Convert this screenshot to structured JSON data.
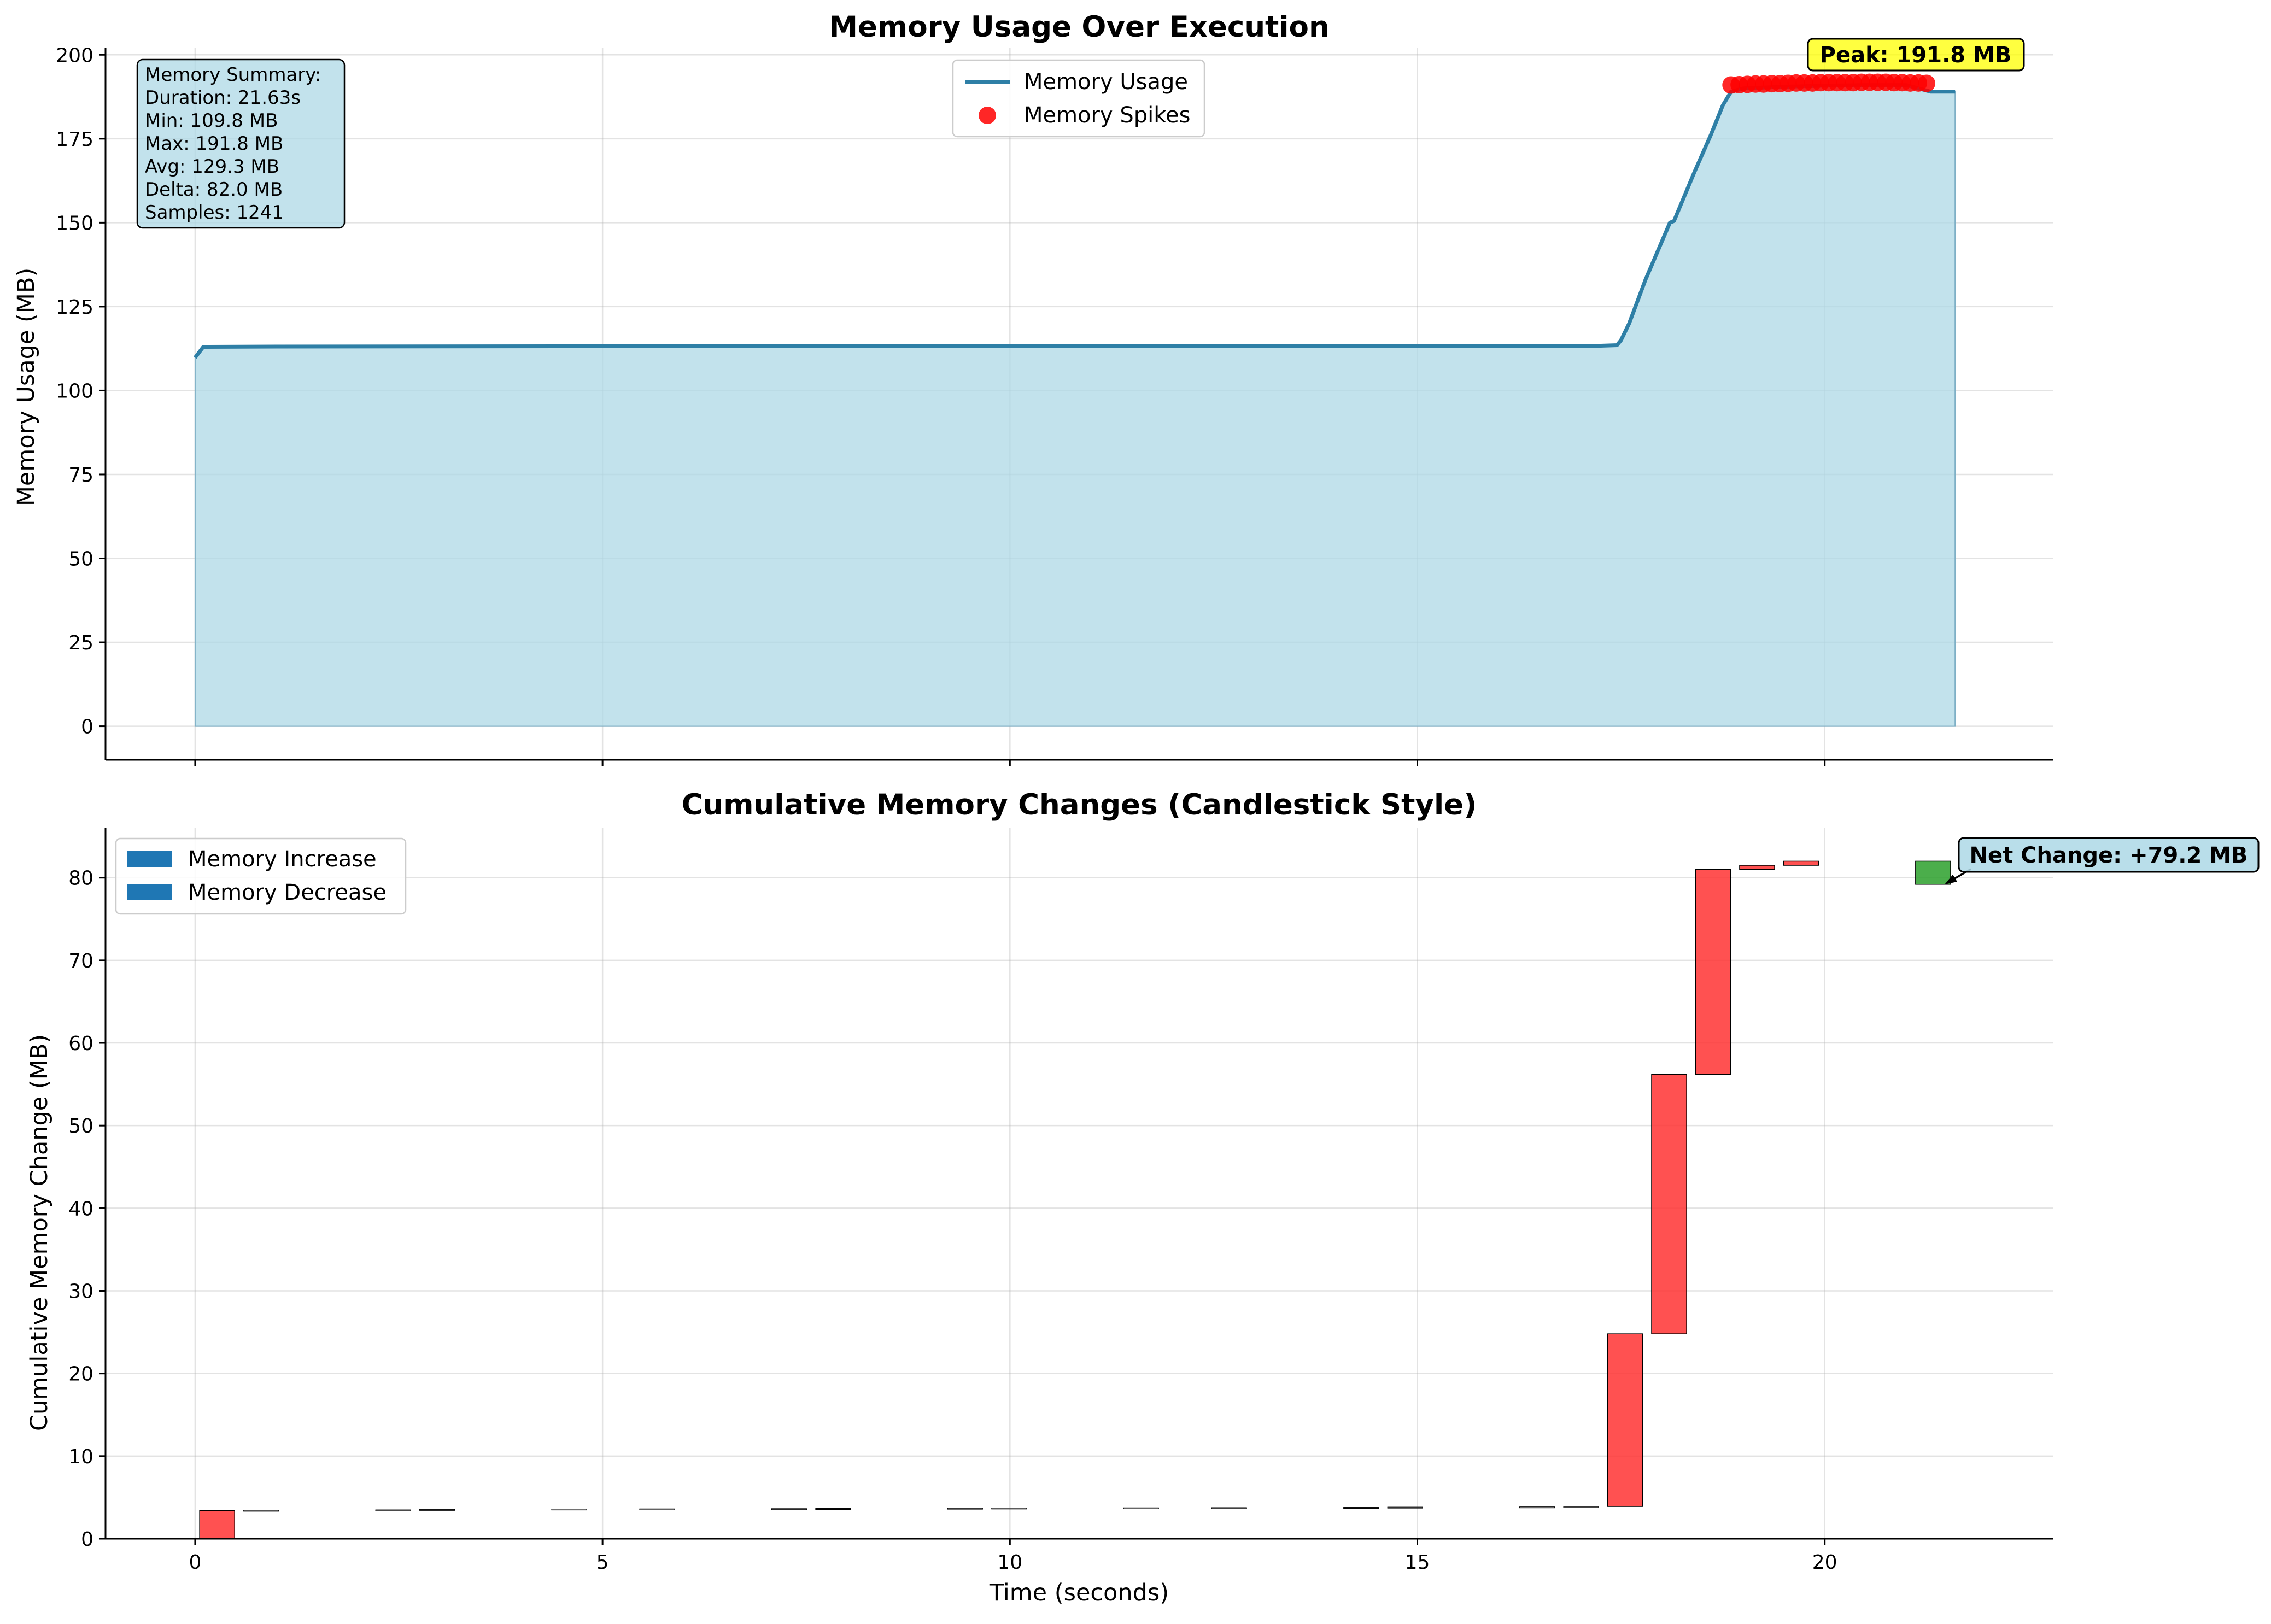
{
  "chart_data": [
    {
      "type": "line",
      "title": "Memory Usage Over Execution",
      "xlabel": "",
      "ylabel": "Memory Usage (MB)",
      "xlim": [
        -1.1,
        22.8
      ],
      "ylim": [
        -10,
        202
      ],
      "xticks": [
        0,
        5,
        10,
        15,
        20
      ],
      "yticks": [
        0,
        25,
        50,
        75,
        100,
        125,
        150,
        175,
        200
      ],
      "grid": true,
      "legend_position": "top-center",
      "colors": {
        "line": "#2e7fa6",
        "fill": "#add8e6",
        "spikes": "#ff0000"
      },
      "series": [
        {
          "name": "Memory Usage",
          "x": [
            0.0,
            0.1,
            1.0,
            5.0,
            10.0,
            15.0,
            17.2,
            17.45,
            17.5,
            17.6,
            17.8,
            18.1,
            18.15,
            18.4,
            18.6,
            18.75,
            18.85,
            19.0,
            19.5,
            20.0,
            20.5,
            21.0,
            21.3,
            21.6
          ],
          "y": [
            109.8,
            113.0,
            113.1,
            113.2,
            113.3,
            113.3,
            113.3,
            113.5,
            115.0,
            120.0,
            133.0,
            150.0,
            150.5,
            165.0,
            176.0,
            185.0,
            189.0,
            190.0,
            190.5,
            190.8,
            191.0,
            191.0,
            189.0,
            189.0
          ]
        },
        {
          "name": "Memory Spikes",
          "type": "scatter",
          "x": [
            18.85,
            18.95,
            19.05,
            19.15,
            19.25,
            19.35,
            19.45,
            19.55,
            19.65,
            19.75,
            19.85,
            19.95,
            20.05,
            20.15,
            20.25,
            20.35,
            20.45,
            20.55,
            20.65,
            20.75,
            20.85,
            20.95,
            21.05,
            21.15,
            21.25
          ],
          "y": [
            191.0,
            191.1,
            191.2,
            191.3,
            191.3,
            191.4,
            191.4,
            191.5,
            191.6,
            191.6,
            191.6,
            191.7,
            191.7,
            191.7,
            191.7,
            191.7,
            191.8,
            191.8,
            191.8,
            191.8,
            191.7,
            191.7,
            191.6,
            191.6,
            191.5
          ]
        }
      ],
      "summary": {
        "title": "Memory Summary:",
        "lines": [
          "Duration: 21.63s",
          "Min: 109.8 MB",
          "Max: 191.8 MB",
          "Avg: 129.3 MB",
          "Delta: 82.0 MB",
          "Samples: 1241"
        ]
      },
      "annotation": {
        "text": "Peak: 191.8 MB",
        "x": 19.95,
        "y": 191.8
      }
    },
    {
      "type": "bar",
      "title": "Cumulative Memory Changes (Candlestick Style)",
      "xlabel": "Time (seconds)",
      "ylabel": "Cumulative Memory Change (MB)",
      "xlim": [
        -1.1,
        22.8
      ],
      "ylim": [
        0,
        86
      ],
      "xticks": [
        0,
        5,
        10,
        15,
        20
      ],
      "yticks": [
        0,
        10,
        20,
        30,
        40,
        50,
        60,
        70,
        80
      ],
      "grid": true,
      "legend_position": "top-left",
      "legend": [
        "Memory Increase",
        "Memory Decrease"
      ],
      "legend_color": "#1f77b4",
      "colors": {
        "increase": "#ff3333",
        "decrease": "#2ca02c",
        "tiny": "#666666"
      },
      "bar_width": 0.43,
      "candles": [
        {
          "x": 0.27,
          "open": 0.0,
          "close": 3.4
        },
        {
          "x": 0.81,
          "open": 3.4,
          "close": 3.45
        },
        {
          "x": 2.43,
          "open": 3.45,
          "close": 3.5
        },
        {
          "x": 2.97,
          "open": 3.5,
          "close": 3.55
        },
        {
          "x": 4.59,
          "open": 3.55,
          "close": 3.6
        },
        {
          "x": 5.67,
          "open": 3.6,
          "close": 3.62
        },
        {
          "x": 7.29,
          "open": 3.62,
          "close": 3.65
        },
        {
          "x": 7.83,
          "open": 3.65,
          "close": 3.67
        },
        {
          "x": 9.45,
          "open": 3.67,
          "close": 3.7
        },
        {
          "x": 9.99,
          "open": 3.7,
          "close": 3.72
        },
        {
          "x": 11.61,
          "open": 3.72,
          "close": 3.75
        },
        {
          "x": 12.69,
          "open": 3.75,
          "close": 3.77
        },
        {
          "x": 14.31,
          "open": 3.77,
          "close": 3.8
        },
        {
          "x": 14.85,
          "open": 3.8,
          "close": 3.83
        },
        {
          "x": 16.47,
          "open": 3.83,
          "close": 3.86
        },
        {
          "x": 17.01,
          "open": 3.86,
          "close": 3.9
        },
        {
          "x": 17.55,
          "open": 3.9,
          "close": 24.8
        },
        {
          "x": 18.09,
          "open": 24.8,
          "close": 56.2
        },
        {
          "x": 18.63,
          "open": 56.2,
          "close": 81.0
        },
        {
          "x": 19.17,
          "open": 81.0,
          "close": 81.5
        },
        {
          "x": 19.71,
          "open": 81.5,
          "close": 82.0
        },
        {
          "x": 21.33,
          "open": 82.0,
          "close": 79.2
        }
      ],
      "annotation": {
        "text": "Net Change: +79.2 MB",
        "x": 21.45,
        "y": 79.2
      }
    }
  ]
}
